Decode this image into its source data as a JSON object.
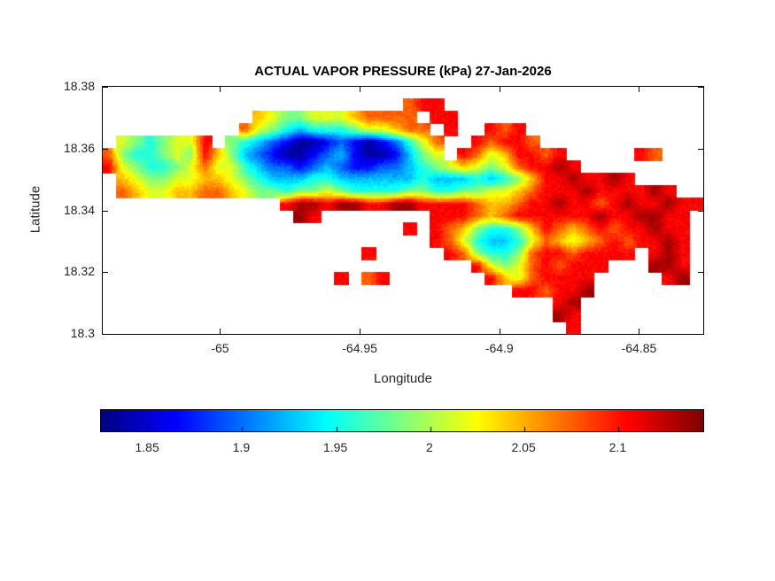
{
  "chart_data": {
    "type": "heatmap",
    "title": "ACTUAL VAPOR PRESSURE (kPa) 27-Jan-2026",
    "date_label": "27-Jan-2026",
    "units": "kPa",
    "xlabel": "Longitude",
    "ylabel": "Latitude",
    "xlim": [
      -65.042,
      -64.827
    ],
    "ylim": [
      18.3,
      18.38
    ],
    "xticks": [
      -65,
      -64.95,
      -64.9,
      -64.85
    ],
    "xtick_labels": [
      "-65",
      "-64.95",
      "-64.9",
      "-64.85"
    ],
    "yticks": [
      18.38,
      18.36,
      18.34,
      18.32,
      18.3
    ],
    "ytick_labels": [
      "18.38",
      "18.36",
      "18.34",
      "18.32",
      "18.3"
    ],
    "colormap": "jet",
    "grid_on": false,
    "colorbar": {
      "orientation": "horizontal",
      "range": [
        1.825,
        2.145
      ],
      "ticks": [
        1.85,
        1.9,
        1.95,
        2,
        2.05,
        2.1
      ],
      "tick_labels": [
        "1.85",
        "1.9",
        "1.95",
        "2",
        "2.05",
        "2.1"
      ]
    },
    "grid": {
      "rows": 20,
      "cols": 44,
      "value_map": {
        ".": null,
        "a": 1.835,
        "b": 1.865,
        "c": 1.895,
        "d": 1.925,
        "e": 1.955,
        "f": 1.985,
        "g": 2.015,
        "h": 2.045,
        "i": 2.075,
        "j": 2.105,
        "k": 2.135
      },
      "cells": [
        "............................................",
        "......................ijj...................",
        "...........hgffggghiiii.jj..................",
        "..........igfedeeefgghii.j..jij.............",
        ".gfefggj.fedcbaabcbabcegi..jijji............",
        "ifeefgfjhfdcbaabcdbaabdfg.jighjjij.....ji...",
        "jgfeefgiggedccbcdcbbccdefghgfgijjkj.........",
        ".hgffgghhgfedddeeddddddedddedefhjjkjjkj.....",
        ".ihgghhiihgffeffgfeeeeffeeffgghijjjkjjjjkj..",
        ".............jkkjkkjjkkjjjjihhijjkjjijkjjkjj",
        "..............kj........jjjihijjjjjjkjjkkjj.",
        "......................j.jihfeefhjihijijjkjj.",
        "........................jigeddegihghijijjkj.",
        "...................j.....jifeefijjijjjj.jkj.",
        "...........................jgfgijijjj...kkj.",
        ".................j.ij.......jhgijjjj.....jk.",
        "..............................jjijjk........",
        ".................................jk.........",
        ".................................kj.........",
        "..................................j........."
      ]
    }
  }
}
